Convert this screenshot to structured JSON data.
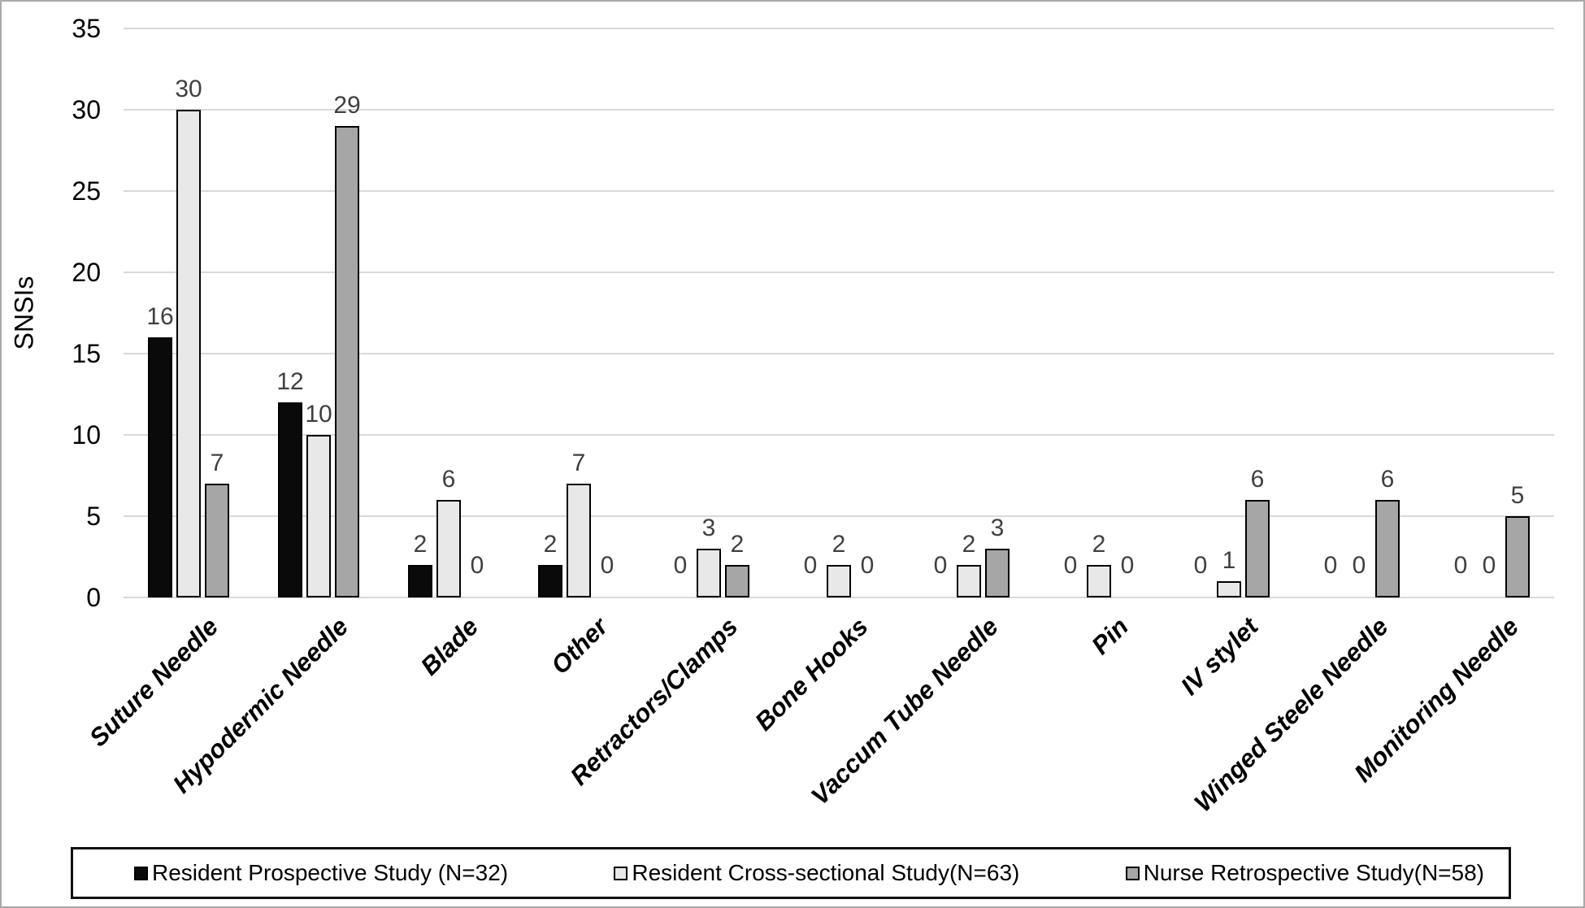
{
  "figure": {
    "background": "#ffffff",
    "border_color": "#a9a9a9"
  },
  "chart_data": {
    "type": "bar",
    "title": "",
    "xlabel": "",
    "ylabel": "SNSIs",
    "ylim": [
      0,
      35
    ],
    "yticks": [
      0,
      5,
      10,
      15,
      20,
      25,
      30,
      35
    ],
    "grid": true,
    "legend_position": "bottom",
    "gridline_color": "#d9d9d9",
    "data_label_color": "#404040",
    "categories": [
      "Suture Needle",
      "Hypodermic Needle",
      "Blade",
      "Other",
      "Retractors/Clamps",
      "Bone Hooks",
      "Vaccum Tube Needle",
      "Pin",
      "IV stylet",
      "Winged Steele Needle",
      "Monitoring Needle"
    ],
    "series": [
      {
        "name": "Resident Prospective Study (N=32)",
        "color": "#0a0a0a",
        "border": "#000000",
        "values": [
          16,
          12,
          2,
          2,
          0,
          0,
          0,
          0,
          0,
          0,
          0
        ]
      },
      {
        "name": "Resident Cross-sectional Study(N=63)",
        "color": "#e8e8e8",
        "border": "#000000",
        "values": [
          30,
          10,
          6,
          7,
          3,
          2,
          2,
          2,
          1,
          0,
          0
        ]
      },
      {
        "name": "Nurse Retrospective Study(N=58)",
        "color": "#a6a6a6",
        "border": "#000000",
        "values": [
          7,
          29,
          0,
          0,
          2,
          0,
          3,
          0,
          6,
          6,
          5
        ]
      }
    ]
  }
}
